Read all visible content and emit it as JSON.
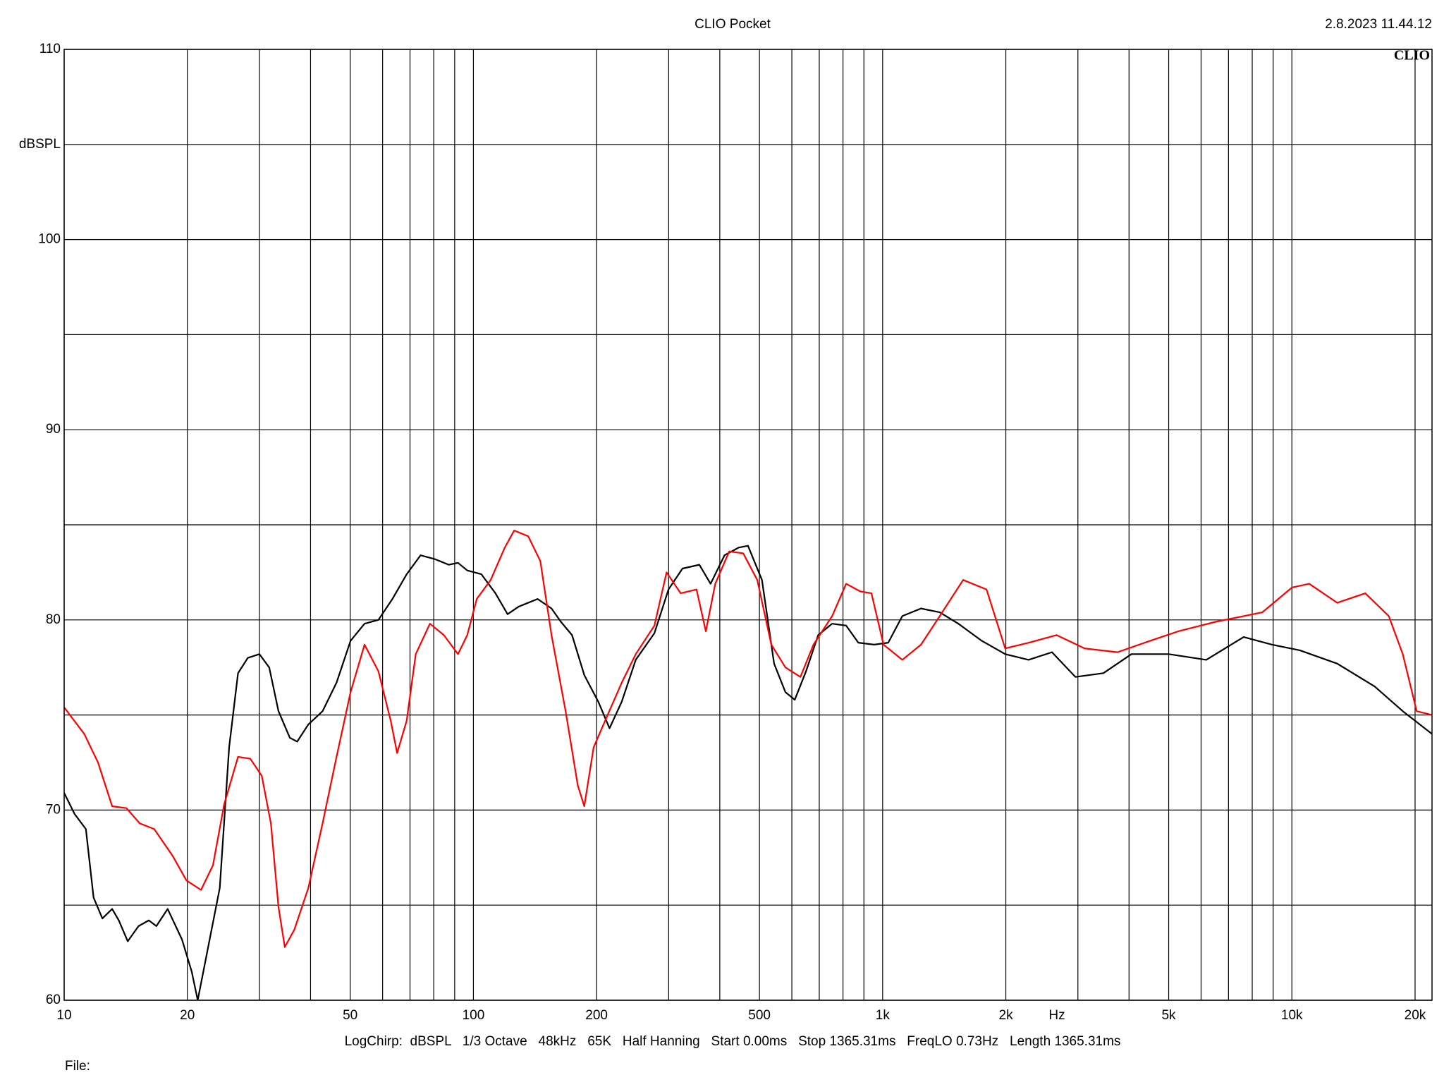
{
  "chart_data": {
    "type": "line",
    "title": "CLIO Pocket",
    "timestamp": "2.8.2023 11.44.12",
    "logo": "CLIO",
    "ylabel": "dBSPL",
    "xlabel": "Hz",
    "footer": "LogChirp:  dBSPL   1/3 Octave   48kHz   65K   Half Hanning   Start 0.00ms   Stop 1365.31ms   FreqLO 0.73Hz   Length 1365.31ms",
    "file_label": "File:",
    "xscale": "log",
    "grid": true,
    "xlim": [
      10,
      22000
    ],
    "ylim": [
      60,
      110
    ],
    "xticks": [
      10,
      20,
      50,
      100,
      200,
      500,
      {
        "value": 1000,
        "label": "1k"
      },
      {
        "value": 2000,
        "label": "2k"
      },
      {
        "value": 5000,
        "label": "5k"
      },
      {
        "value": 10000,
        "label": "10k"
      },
      {
        "value": 20000,
        "label": "20k"
      }
    ],
    "minor_xticks": [
      30,
      40,
      60,
      70,
      80,
      90,
      300,
      400,
      600,
      700,
      800,
      900,
      3000,
      4000,
      6000,
      7000,
      8000,
      9000
    ],
    "yticks": [
      60,
      70,
      80,
      90,
      100,
      110
    ],
    "minor_yticks": [
      65,
      75,
      85,
      95,
      105
    ],
    "series": [
      {
        "color": "#000000",
        "x": [
          10,
          10.6,
          11.3,
          11.8,
          12.4,
          13.1,
          13.6,
          14.3,
          15.2,
          16.1,
          16.8,
          17.9,
          19.4,
          20.5,
          21.2,
          24.0,
          25.3,
          26.6,
          28.1,
          30.0,
          31.7,
          33.4,
          35.6,
          37.1,
          39.5,
          42.8,
          46.3,
          50.1,
          54.2,
          58.6,
          63.4,
          68.7,
          74.3,
          80.4,
          87.0,
          91.7,
          96.6,
          104.6,
          113.2,
          121.2,
          129.1,
          143.5,
          155.2,
          163.6,
          174.2,
          186.6,
          201.9,
          215.1,
          230.4,
          249.3,
          276.9,
          299.7,
          324.3,
          356.5,
          379.8,
          410.9,
          444.6,
          468.7,
          507.1,
          543,
          578.7,
          609.9,
          649.9,
          695.8,
          752.6,
          814.4,
          872.2,
          953.7,
          1032,
          1117,
          1241,
          1379,
          1531,
          1747,
          1993,
          2273,
          2593,
          2958,
          3463,
          4055,
          5004,
          6177,
          7624,
          8930,
          10457,
          12907,
          15933,
          18663,
          22000
        ],
        "values": [
          70.9,
          69.8,
          69.0,
          65.4,
          64.3,
          64.8,
          64.2,
          63.1,
          63.9,
          64.2,
          63.9,
          64.8,
          63.2,
          61.5,
          60.0,
          65.9,
          73.3,
          77.2,
          78.0,
          78.2,
          77.5,
          75.2,
          73.8,
          73.6,
          74.5,
          75.2,
          76.7,
          78.9,
          79.8,
          80.0,
          81.1,
          82.4,
          83.4,
          83.2,
          82.9,
          83.0,
          82.6,
          82.4,
          81.4,
          80.3,
          80.7,
          81.1,
          80.6,
          79.9,
          79.2,
          77.1,
          75.7,
          74.3,
          75.7,
          77.9,
          79.3,
          81.6,
          82.7,
          82.9,
          81.9,
          83.4,
          83.8,
          83.9,
          82.1,
          77.7,
          76.2,
          75.8,
          77.3,
          79.2,
          79.8,
          79.7,
          78.8,
          78.7,
          78.8,
          80.2,
          80.6,
          80.4,
          79.8,
          78.9,
          78.2,
          77.9,
          78.3,
          77.0,
          77.2,
          78.2,
          78.2,
          77.9,
          79.1,
          78.7,
          78.4,
          77.7,
          76.5,
          75.2,
          74.0
        ]
      },
      {
        "color": "#ff0000",
        "x": [
          10,
          11.2,
          12.1,
          13.1,
          14.2,
          15.3,
          16.6,
          18.4,
          19.9,
          21.6,
          23.1,
          24.6,
          26.6,
          28.5,
          30.4,
          32.0,
          33.4,
          34.6,
          36.5,
          39.5,
          42.8,
          46.3,
          50.1,
          54.2,
          58.6,
          62.8,
          65.1,
          68.7,
          72.3,
          78.3,
          84.7,
          91.7,
          96.6,
          101.9,
          110.2,
          119.3,
          125.8,
          136.1,
          145.7,
          155.2,
          168.0,
          179.9,
          186.6,
          196.7,
          212.8,
          230.4,
          249.3,
          276.9,
          296.5,
          320.9,
          350.9,
          369.8,
          389.9,
          421.8,
          456.4,
          493.9,
          534.6,
          578.7,
          629.5,
          677.7,
          752.6,
          814.4,
          881.4,
          938.9,
          1005,
          1117,
          1241,
          1379,
          1573,
          1794,
          1993,
          2273,
          2662,
          3116,
          3748,
          4506,
          5277,
          6513,
          7624,
          8472,
          10000,
          11023,
          12907,
          15114,
          17250,
          18663,
          20184,
          22000
        ],
        "values": [
          75.4,
          74.0,
          72.5,
          70.2,
          70.1,
          69.3,
          69.0,
          67.6,
          66.3,
          65.8,
          67.1,
          70.3,
          72.8,
          72.7,
          71.8,
          69.3,
          64.9,
          62.8,
          63.7,
          65.9,
          69.3,
          72.8,
          76.2,
          78.7,
          77.3,
          74.7,
          73.0,
          74.7,
          78.2,
          79.8,
          79.2,
          78.2,
          79.2,
          81.1,
          82.1,
          83.8,
          84.7,
          84.4,
          83.1,
          79.2,
          75.2,
          71.3,
          70.2,
          73.3,
          75.0,
          76.7,
          78.2,
          79.7,
          82.5,
          81.4,
          81.6,
          79.4,
          81.9,
          83.6,
          83.5,
          82.1,
          78.7,
          77.5,
          77.0,
          78.7,
          80.2,
          81.9,
          81.5,
          81.4,
          78.7,
          77.9,
          78.7,
          80.2,
          82.1,
          81.6,
          78.5,
          78.8,
          79.2,
          78.5,
          78.3,
          78.9,
          79.4,
          79.9,
          80.2,
          80.4,
          81.7,
          81.9,
          80.9,
          81.4,
          80.2,
          78.2,
          75.2,
          75.0
        ]
      }
    ]
  }
}
